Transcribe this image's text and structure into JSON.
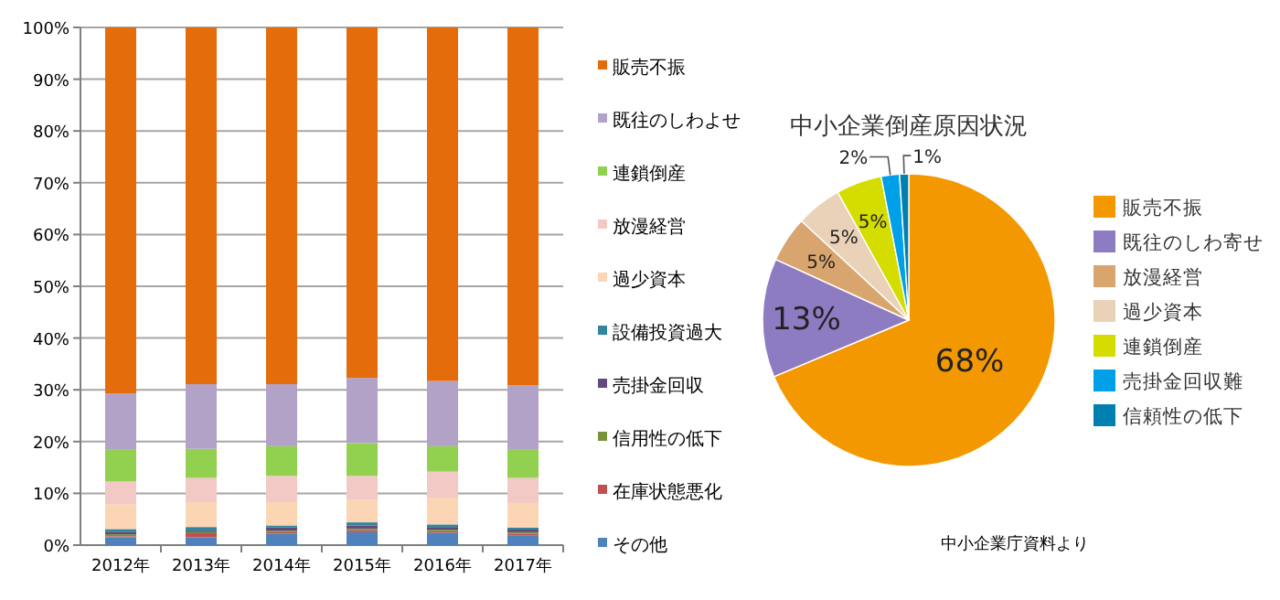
{
  "chart_data": [
    {
      "type": "bar",
      "stacked": true,
      "categories": [
        "2012年",
        "2013年",
        "2014年",
        "2015年",
        "2016年",
        "2017年"
      ],
      "ylim": [
        0,
        100
      ],
      "yticks": [
        {
          "value": 0,
          "label": "0%"
        },
        {
          "value": 10,
          "label": "10%"
        },
        {
          "value": 20,
          "label": "20%"
        },
        {
          "value": 30,
          "label": "30%"
        },
        {
          "value": 40,
          "label": "40%"
        },
        {
          "value": 50,
          "label": "50%"
        },
        {
          "value": 60,
          "label": "60%"
        },
        {
          "value": 70,
          "label": "70%"
        },
        {
          "value": 80,
          "label": "80%"
        },
        {
          "value": 90,
          "label": "90%"
        },
        {
          "value": 100,
          "label": "100%"
        }
      ],
      "grid": "y",
      "legend": "right",
      "series": [
        {
          "name": "その他",
          "color": "#4f81bd",
          "values": [
            1.5,
            1.5,
            2.2,
            2.5,
            2.4,
            1.9
          ]
        },
        {
          "name": "在庫状態悪化",
          "color": "#c0504d",
          "values": [
            0.2,
            0.8,
            0.3,
            0.4,
            0.3,
            0.3
          ]
        },
        {
          "name": "信用性の低下",
          "color": "#77933c",
          "values": [
            0.4,
            0.2,
            0.3,
            0.3,
            0.3,
            0.3
          ]
        },
        {
          "name": "売掛金回収",
          "color": "#604a7b",
          "values": [
            0.5,
            0.3,
            0.6,
            0.6,
            0.5,
            0.5
          ]
        },
        {
          "name": "設備投資過大",
          "color": "#31859c",
          "values": [
            0.5,
            0.7,
            0.4,
            0.6,
            0.5,
            0.4
          ]
        },
        {
          "name": "過少資本",
          "color": "#fcd5b5",
          "values": [
            4.8,
            4.8,
            4.5,
            4.3,
            5.2,
            4.6
          ]
        },
        {
          "name": "放漫経営",
          "color": "#f2c9c4",
          "values": [
            4.4,
            4.7,
            5.1,
            4.7,
            5.0,
            5.0
          ]
        },
        {
          "name": "連鎖倒産",
          "color": "#92d050",
          "values": [
            6.1,
            5.6,
            5.7,
            6.3,
            4.9,
            5.4
          ]
        },
        {
          "name": "既往のしわよせ",
          "color": "#b3a2c7",
          "values": [
            10.9,
            12.5,
            12.0,
            12.6,
            12.6,
            12.5
          ]
        },
        {
          "name": "販売不振",
          "color": "#e46c0a",
          "values": [
            70.7,
            68.9,
            68.9,
            67.7,
            68.3,
            69.1
          ]
        }
      ]
    },
    {
      "type": "pie",
      "title": "中小企業倒産原因状況",
      "legend": "right",
      "categories": [
        "販売不振",
        "既往のしわ寄せ",
        "放漫経営",
        "過少資本",
        "連鎖倒産",
        "売掛金回収難",
        "信頼性の低下"
      ],
      "values": [
        68,
        13,
        5,
        5,
        5,
        2,
        1
      ],
      "colors": [
        "#f39800",
        "#8e7cc3",
        "#d9a56e",
        "#ead2b8",
        "#d4dc00",
        "#00a0e9",
        "#0080b0"
      ],
      "value_labels": [
        "68%",
        "13%",
        "5%",
        "5%",
        "5%",
        "2%",
        "1%"
      ],
      "annotations": [
        "中小企業庁資料より"
      ]
    }
  ]
}
